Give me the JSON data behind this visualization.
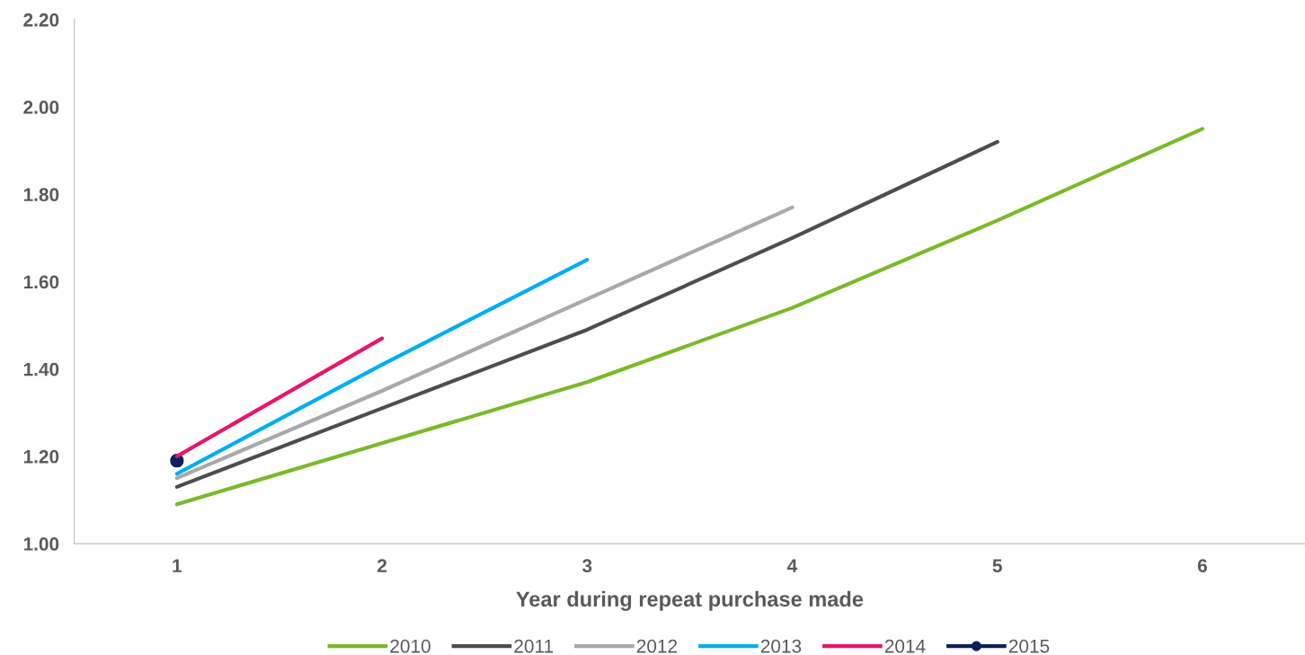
{
  "chart_data": {
    "type": "line",
    "xlabel": "Year during repeat purchase made",
    "categories": [
      "1",
      "2",
      "3",
      "4",
      "5",
      "6"
    ],
    "ylim": [
      1.0,
      2.2
    ],
    "yticks": [
      {
        "value": 1.0,
        "label": "1.00"
      },
      {
        "value": 1.2,
        "label": "1.20"
      },
      {
        "value": 1.4,
        "label": "1.40"
      },
      {
        "value": 1.6,
        "label": "1.60"
      },
      {
        "value": 1.8,
        "label": "1.80"
      },
      {
        "value": 2.0,
        "label": "2.00"
      },
      {
        "value": 2.2,
        "label": "2.20"
      }
    ],
    "grid": false,
    "legend": "bottom",
    "series": [
      {
        "name": "2010",
        "color": "#7ab929",
        "values": [
          1.09,
          1.23,
          1.37,
          1.54,
          1.74,
          1.95
        ]
      },
      {
        "name": "2011",
        "color": "#4d4d4f",
        "values": [
          1.13,
          1.31,
          1.49,
          1.7,
          1.92,
          null
        ]
      },
      {
        "name": "2012",
        "color": "#a7a9ac",
        "values": [
          1.15,
          1.35,
          1.56,
          1.77,
          null,
          null
        ]
      },
      {
        "name": "2013",
        "color": "#00aeef",
        "values": [
          1.16,
          1.41,
          1.65,
          null,
          null,
          null
        ]
      },
      {
        "name": "2014",
        "color": "#e6176b",
        "values": [
          1.2,
          1.47,
          null,
          null,
          null,
          null
        ]
      },
      {
        "name": "2015",
        "color": "#0d1f5c",
        "marker": "circle",
        "values": [
          1.19,
          null,
          null,
          null,
          null,
          null
        ]
      }
    ]
  }
}
